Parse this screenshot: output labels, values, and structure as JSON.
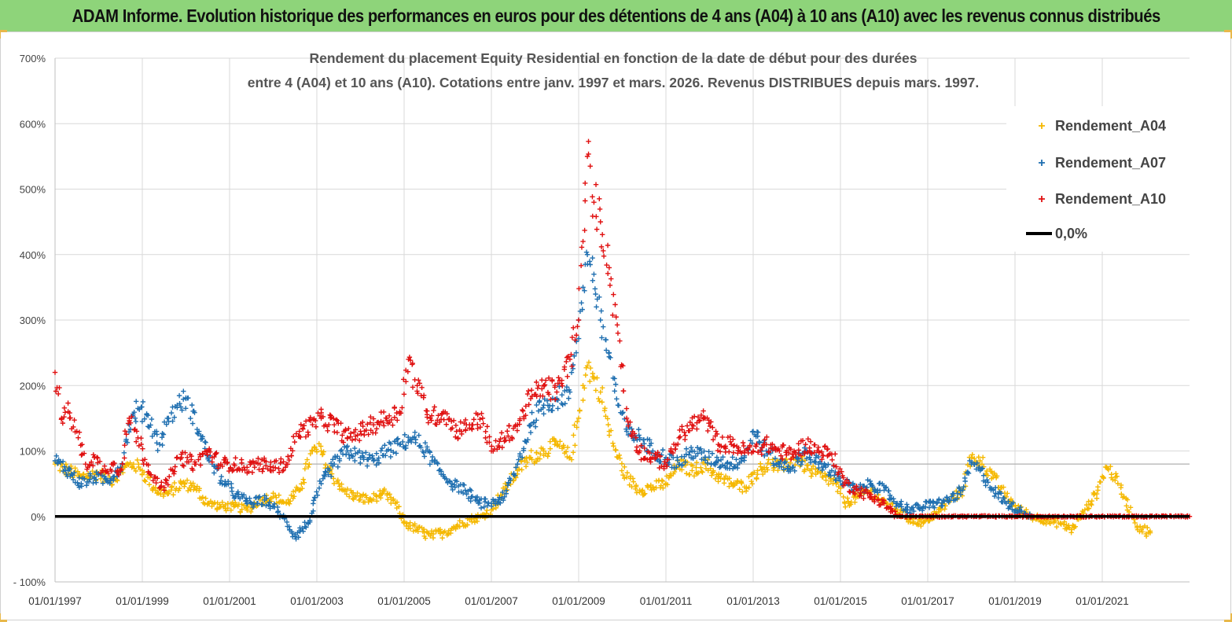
{
  "header": {
    "title": "ADAM Informe. Evolution historique des performances en euros pour des détentions de 4 ans (A04) à 10 ans (A10) avec les revenus connus distribués"
  },
  "chart_data": {
    "type": "scatter",
    "title_line1": "Rendement du placement Equity Residential en fonction de la date de début pour des durées",
    "title_line2": "entre 4 (A04) et 10 ans (A10). Cotations entre janv. 1997 et mars. 2026. Revenus DISTRIBUES depuis mars. 1997.",
    "xlabel": "",
    "ylabel": "",
    "xlim": [
      1997.0,
      2023.0
    ],
    "ylim": [
      -100,
      700
    ],
    "y_ticks": [
      {
        "value": 700,
        "label": "700%"
      },
      {
        "value": 600,
        "label": "600%"
      },
      {
        "value": 500,
        "label": "500%"
      },
      {
        "value": 400,
        "label": "400%"
      },
      {
        "value": 300,
        "label": "300%"
      },
      {
        "value": 200,
        "label": "200%"
      },
      {
        "value": 100,
        "label": "100%"
      },
      {
        "value": 0,
        "label": "0%"
      },
      {
        "value": -100,
        "label": "- 100%"
      }
    ],
    "x_ticks": [
      {
        "value": 1997,
        "label": "01/01/1997"
      },
      {
        "value": 1999,
        "label": "01/01/1999"
      },
      {
        "value": 2001,
        "label": "01/01/2001"
      },
      {
        "value": 2003,
        "label": "01/01/2003"
      },
      {
        "value": 2005,
        "label": "01/01/2005"
      },
      {
        "value": 2007,
        "label": "01/01/2007"
      },
      {
        "value": 2009,
        "label": "01/01/2009"
      },
      {
        "value": 2011,
        "label": "01/01/2011"
      },
      {
        "value": 2013,
        "label": "01/01/2013"
      },
      {
        "value": 2015,
        "label": "01/01/2015"
      },
      {
        "value": 2017,
        "label": "01/01/2017"
      },
      {
        "value": 2019,
        "label": "01/01/2019"
      },
      {
        "value": 2021,
        "label": "01/01/2021"
      }
    ],
    "reference_line_value": 80,
    "legend_position": "top-right",
    "series": [
      {
        "name": "Rendement_A04",
        "color": "#f5b800",
        "x": [
          1997.0,
          1997.3,
          1997.6,
          1998.0,
          1998.3,
          1998.6,
          1998.8,
          1999.0,
          1999.3,
          1999.6,
          1999.9,
          2000.2,
          2000.5,
          2000.8,
          2001.1,
          2001.4,
          2001.7,
          2002.0,
          2002.3,
          2002.6,
          2002.9,
          2003.1,
          2003.3,
          2003.6,
          2003.9,
          2004.2,
          2004.5,
          2004.8,
          2005.0,
          2005.3,
          2005.6,
          2005.9,
          2006.2,
          2006.5,
          2006.8,
          2007.0,
          2007.3,
          2007.6,
          2007.9,
          2008.2,
          2008.5,
          2008.8,
          2009.0,
          2009.1,
          2009.2,
          2009.35,
          2009.5,
          2009.7,
          2009.9,
          2010.1,
          2010.4,
          2010.7,
          2011.0,
          2011.3,
          2011.6,
          2011.9,
          2012.2,
          2012.5,
          2012.8,
          2013.1,
          2013.4,
          2013.7,
          2014.0,
          2014.3,
          2014.6,
          2014.9,
          2015.1,
          2015.4,
          2015.7,
          2016.0,
          2016.3,
          2016.6,
          2016.9,
          2017.2,
          2017.5,
          2017.8,
          2018.0,
          2018.2,
          2018.5,
          2018.8,
          2019.1,
          2019.4,
          2019.7,
          2020.0,
          2020.3,
          2020.6,
          2020.9,
          2021.1,
          2021.3,
          2021.5,
          2021.8,
          2022.1
        ],
        "values": [
          80,
          70,
          60,
          65,
          55,
          75,
          80,
          70,
          40,
          35,
          50,
          45,
          20,
          15,
          15,
          10,
          25,
          30,
          20,
          40,
          100,
          100,
          70,
          40,
          30,
          25,
          35,
          20,
          -10,
          -20,
          -30,
          -25,
          -15,
          -5,
          0,
          10,
          40,
          70,
          90,
          100,
          110,
          90,
          150,
          200,
          230,
          210,
          190,
          130,
          90,
          60,
          40,
          45,
          50,
          80,
          70,
          80,
          60,
          50,
          45,
          70,
          80,
          75,
          90,
          70,
          60,
          50,
          20,
          30,
          40,
          20,
          10,
          -5,
          -10,
          5,
          25,
          40,
          90,
          85,
          60,
          30,
          10,
          0,
          -5,
          -10,
          -20,
          10,
          40,
          75,
          60,
          30,
          -15,
          -25
        ]
      },
      {
        "name": "Rendement_A07",
        "color": "#1f6fb0",
        "x": [
          1997.0,
          1997.3,
          1997.6,
          1997.9,
          1998.2,
          1998.5,
          1998.7,
          1998.9,
          1999.1,
          1999.4,
          1999.6,
          1999.8,
          2000.0,
          2000.3,
          2000.6,
          2000.9,
          2001.2,
          2001.5,
          2001.8,
          2002.0,
          2002.2,
          2002.5,
          2002.8,
          2003.1,
          2003.4,
          2003.7,
          2004.0,
          2004.3,
          2004.6,
          2004.9,
          2005.2,
          2005.5,
          2005.8,
          2006.1,
          2006.4,
          2006.7,
          2007.0,
          2007.3,
          2007.6,
          2007.9,
          2008.2,
          2008.5,
          2008.8,
          2009.0,
          2009.1,
          2009.2,
          2009.35,
          2009.5,
          2009.7,
          2009.9,
          2010.1,
          2010.4,
          2010.7,
          2011.0,
          2011.3,
          2011.6,
          2011.9,
          2012.2,
          2012.5,
          2012.8,
          2013.0,
          2013.3,
          2013.6,
          2013.9,
          2014.2,
          2014.5,
          2014.8,
          2015.1,
          2015.4,
          2015.7,
          2016.0,
          2016.3,
          2016.6,
          2016.9,
          2017.2,
          2017.5,
          2017.8,
          2018.0,
          2018.2,
          2018.5,
          2018.8,
          2019.1,
          2019.4
        ],
        "values": [
          85,
          70,
          50,
          60,
          55,
          75,
          140,
          165,
          155,
          110,
          150,
          170,
          180,
          130,
          80,
          50,
          30,
          20,
          25,
          15,
          0,
          -30,
          -10,
          50,
          80,
          100,
          90,
          85,
          100,
          110,
          120,
          100,
          70,
          50,
          40,
          20,
          20,
          30,
          80,
          140,
          170,
          180,
          190,
          300,
          350,
          400,
          370,
          300,
          250,
          170,
          130,
          120,
          100,
          90,
          80,
          100,
          90,
          85,
          80,
          90,
          130,
          100,
          80,
          75,
          100,
          80,
          70,
          50,
          40,
          50,
          40,
          20,
          10,
          15,
          20,
          25,
          40,
          80,
          70,
          40,
          20,
          10,
          0
        ]
      },
      {
        "name": "Rendement_A10",
        "color": "#e01010",
        "x": [
          1997.0,
          1997.15,
          1997.3,
          1997.5,
          1997.7,
          1997.9,
          1998.1,
          1998.3,
          1998.5,
          1998.7,
          1998.9,
          1999.1,
          1999.3,
          1999.5,
          1999.7,
          1999.9,
          2000.2,
          2000.5,
          2000.8,
          2001.1,
          2001.4,
          2001.7,
          2002.0,
          2002.3,
          2002.6,
          2002.9,
          2003.1,
          2003.4,
          2003.7,
          2004.0,
          2004.3,
          2004.6,
          2004.9,
          2005.1,
          2005.3,
          2005.6,
          2005.9,
          2006.2,
          2006.5,
          2006.8,
          2007.0,
          2007.3,
          2007.6,
          2007.9,
          2008.2,
          2008.5,
          2008.8,
          2009.0,
          2009.1,
          2009.2,
          2009.35,
          2009.5,
          2009.7,
          2009.9,
          2010.1,
          2010.4,
          2010.7,
          2011.0,
          2011.3,
          2011.6,
          2011.9,
          2012.2,
          2012.5,
          2012.8,
          2013.0,
          2013.3,
          2013.6,
          2013.9,
          2014.2,
          2014.5,
          2014.8,
          2015.1,
          2015.4,
          2015.7,
          2016.0,
          2016.3,
          2017.0,
          2018.0,
          2019.0,
          2020.0,
          2021.0,
          2022.0,
          2023.0
        ],
        "values": [
          220,
          150,
          160,
          130,
          80,
          90,
          70,
          80,
          70,
          150,
          120,
          80,
          60,
          40,
          70,
          90,
          80,
          100,
          80,
          80,
          75,
          80,
          75,
          80,
          130,
          140,
          150,
          140,
          120,
          130,
          140,
          150,
          160,
          240,
          200,
          150,
          160,
          130,
          140,
          150,
          100,
          120,
          140,
          180,
          200,
          190,
          240,
          300,
          420,
          550,
          480,
          450,
          380,
          280,
          150,
          100,
          90,
          80,
          120,
          140,
          150,
          110,
          110,
          100,
          100,
          110,
          100,
          95,
          110,
          100,
          95,
          50,
          40,
          30,
          20,
          0,
          0,
          0,
          0,
          0,
          0,
          0,
          0
        ]
      },
      {
        "name": "0,0%",
        "color": "#000000",
        "x": [
          1997.0,
          2023.0
        ],
        "values": [
          0,
          0
        ]
      }
    ]
  }
}
